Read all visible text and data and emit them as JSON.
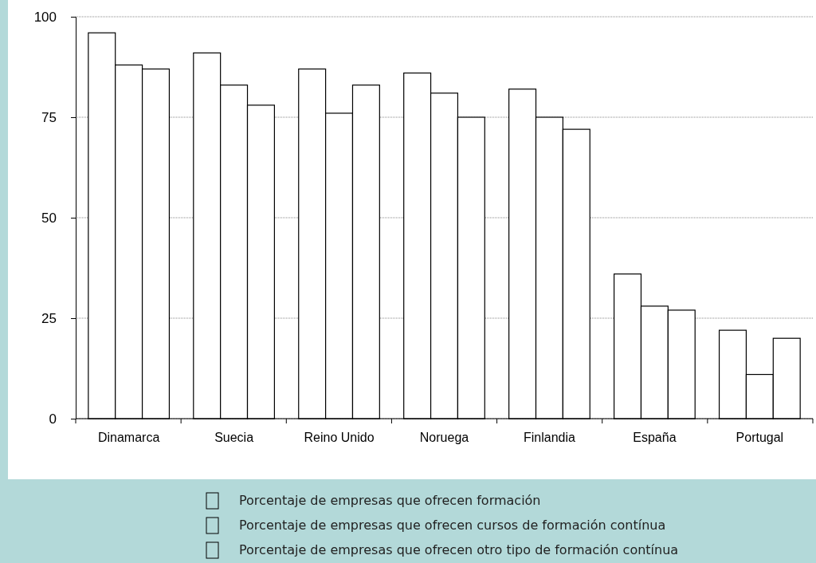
{
  "chart_data": {
    "type": "bar",
    "categories": [
      "Dinamarca",
      "Suecia",
      "Reino Unido",
      "Noruega",
      "Finlandia",
      "España",
      "Portugal"
    ],
    "series": [
      {
        "name": "Porcentaje de empresas que ofrecen formación",
        "color": "#ffffff",
        "values": [
          96,
          91,
          87,
          86,
          82,
          36,
          22
        ]
      },
      {
        "name": "Porcentaje de empresas que ofrecen cursos de formación contínua",
        "color": "#ffffff",
        "values": [
          88,
          83,
          76,
          81,
          75,
          28,
          11
        ]
      },
      {
        "name": "Porcentaje de empresas que ofrecen otro tipo de formación contínua",
        "color": "#ffffff",
        "values": [
          87,
          78,
          83,
          75,
          72,
          27,
          20
        ]
      }
    ],
    "ylim": [
      0,
      100
    ],
    "yticks": [
      0,
      25,
      50,
      75,
      100
    ],
    "grid": "y",
    "legend": "bottom"
  }
}
